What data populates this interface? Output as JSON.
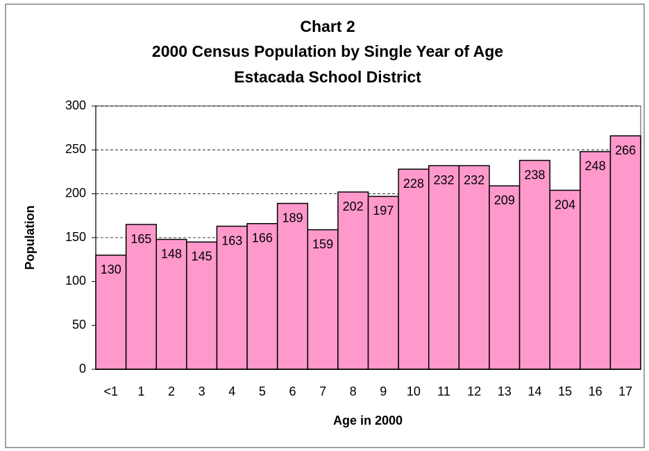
{
  "chart_data": {
    "type": "bar",
    "title": [
      "Chart 2",
      "2000 Census Population by Single Year of Age",
      "Estacada School District"
    ],
    "x_label": "Age in 2000",
    "y_label": "Population",
    "categories": [
      "<1",
      "1",
      "2",
      "3",
      "4",
      "5",
      "6",
      "7",
      "8",
      "9",
      "10",
      "11",
      "12",
      "13",
      "14",
      "15",
      "16",
      "17"
    ],
    "values": [
      130,
      165,
      148,
      145,
      163,
      166,
      189,
      159,
      202,
      197,
      228,
      232,
      232,
      209,
      238,
      204,
      248,
      266
    ],
    "color": "#ff99cc",
    "ylim": [
      0,
      300
    ],
    "yticks": [
      0,
      50,
      100,
      150,
      200,
      250,
      300
    ],
    "grid": true
  }
}
